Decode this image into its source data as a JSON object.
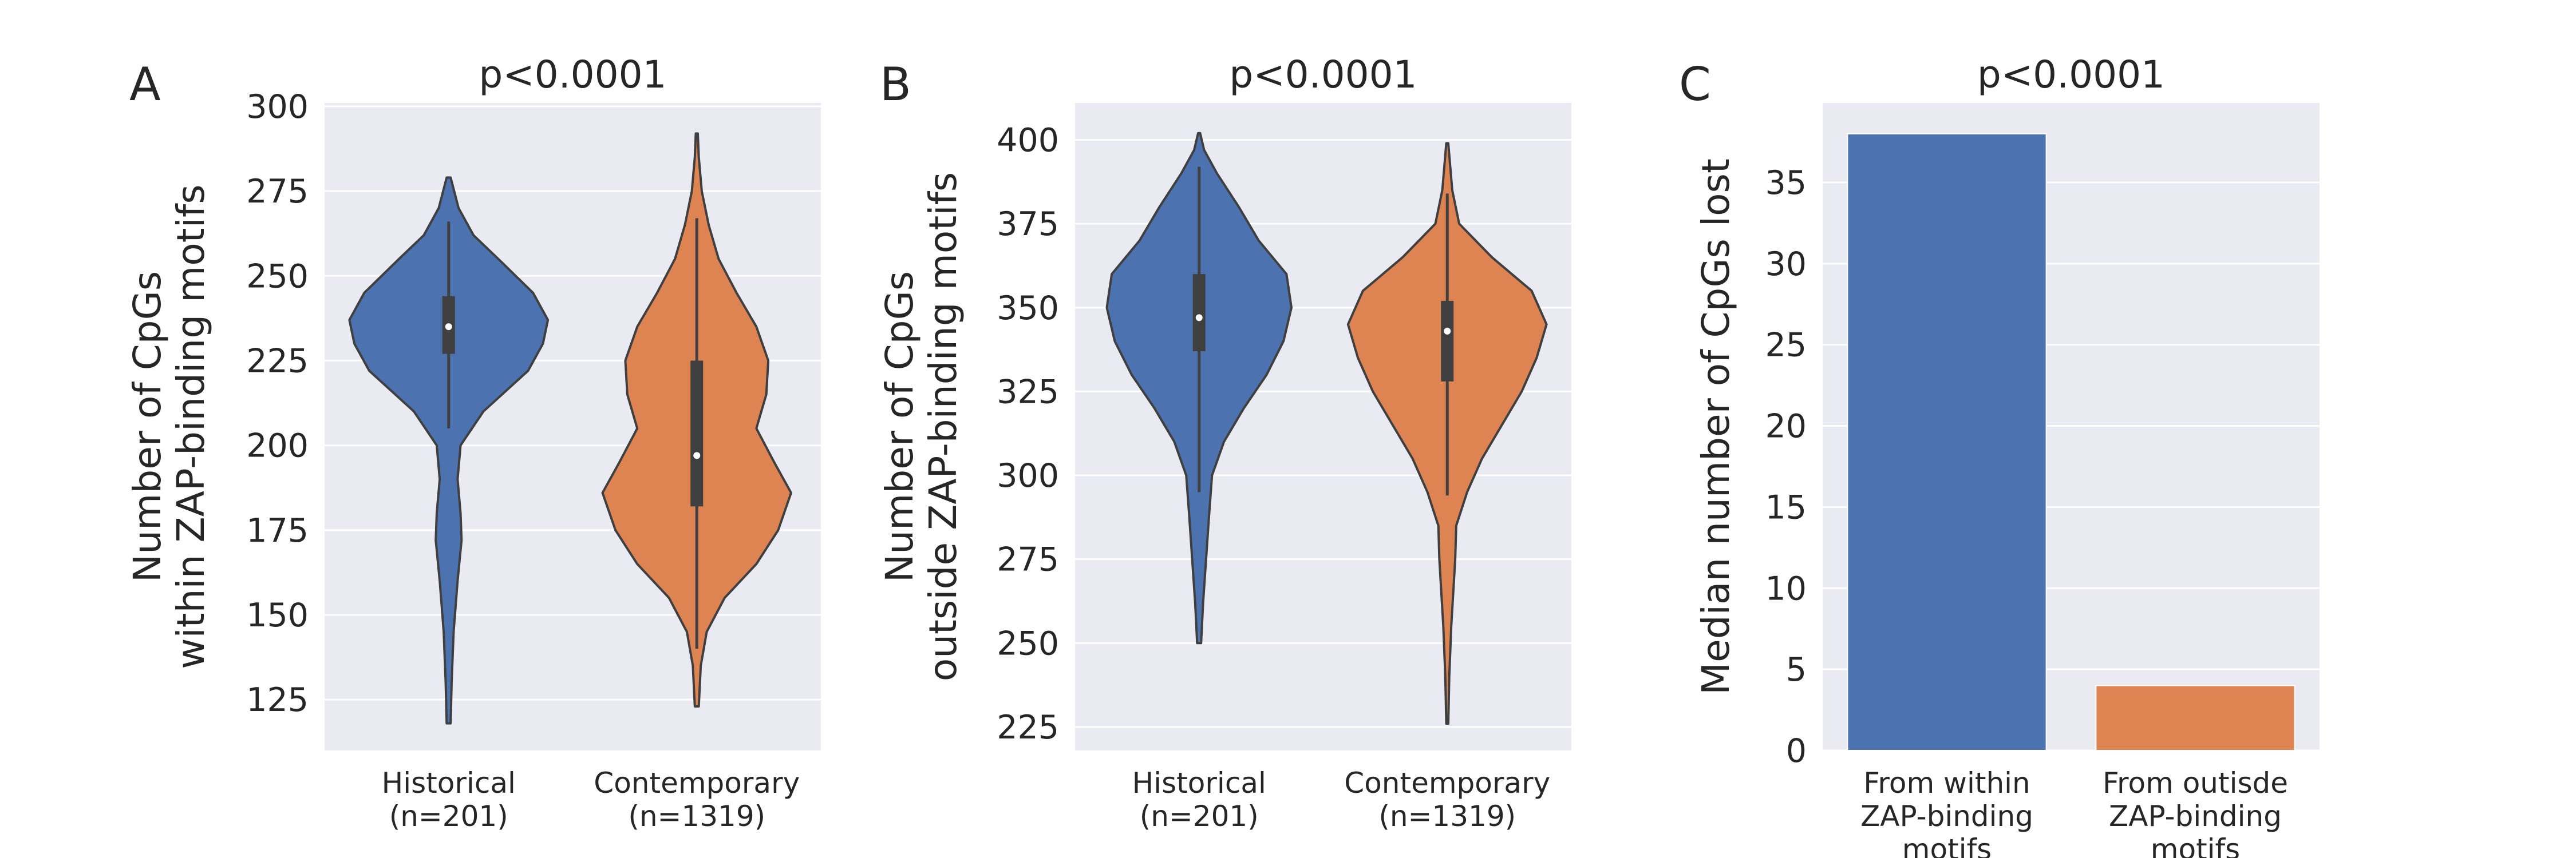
{
  "chart_data": [
    {
      "panel_letter": "A",
      "type": "violin",
      "title": "p<0.0001",
      "ylabel_lines": [
        "Number of CpGs",
        "within ZAP-binding motifs"
      ],
      "yticks": [
        125,
        150,
        175,
        200,
        225,
        250,
        275,
        300
      ],
      "ylim": [
        110,
        301
      ],
      "grid": true,
      "series": [
        {
          "label_lines": [
            "Historical",
            "(n=201)"
          ],
          "color": "#4c72b0",
          "range": [
            118,
            279
          ],
          "q1": 227,
          "median": 235,
          "q3": 244,
          "whisker": [
            205,
            266
          ],
          "density": [
            [
              118,
              0.02
            ],
            [
              130,
              0.03
            ],
            [
              145,
              0.05
            ],
            [
              160,
              0.09
            ],
            [
              172,
              0.13
            ],
            [
              180,
              0.12
            ],
            [
              190,
              0.09
            ],
            [
              200,
              0.12
            ],
            [
              210,
              0.35
            ],
            [
              222,
              0.8
            ],
            [
              230,
              0.95
            ],
            [
              237,
              1.0
            ],
            [
              245,
              0.85
            ],
            [
              255,
              0.5
            ],
            [
              262,
              0.25
            ],
            [
              270,
              0.1
            ],
            [
              279,
              0.02
            ]
          ]
        },
        {
          "label_lines": [
            "Contemporary",
            "(n=1319)"
          ],
          "color": "#dd8452",
          "range": [
            123,
            292
          ],
          "q1": 182,
          "median": 197,
          "q3": 225,
          "whisker": [
            140,
            267
          ],
          "density": [
            [
              123,
              0.02
            ],
            [
              135,
              0.04
            ],
            [
              145,
              0.1
            ],
            [
              155,
              0.28
            ],
            [
              165,
              0.6
            ],
            [
              175,
              0.82
            ],
            [
              186,
              0.95
            ],
            [
              195,
              0.78
            ],
            [
              205,
              0.6
            ],
            [
              215,
              0.7
            ],
            [
              225,
              0.72
            ],
            [
              235,
              0.6
            ],
            [
              245,
              0.4
            ],
            [
              255,
              0.22
            ],
            [
              265,
              0.12
            ],
            [
              275,
              0.05
            ],
            [
              285,
              0.02
            ],
            [
              292,
              0.01
            ]
          ]
        }
      ]
    },
    {
      "panel_letter": "B",
      "type": "violin",
      "title": "p<0.0001",
      "ylabel_lines": [
        "Number of CpGs",
        "outside ZAP-binding motifs"
      ],
      "yticks": [
        225,
        250,
        275,
        300,
        325,
        350,
        375,
        400
      ],
      "ylim": [
        218,
        411
      ],
      "grid": true,
      "series": [
        {
          "label_lines": [
            "Historical",
            "(n=201)"
          ],
          "color": "#4c72b0",
          "range": [
            250,
            402
          ],
          "q1": 337,
          "median": 347,
          "q3": 360,
          "whisker": [
            295,
            392
          ],
          "density": [
            [
              250,
              0.02
            ],
            [
              262,
              0.04
            ],
            [
              275,
              0.07
            ],
            [
              288,
              0.1
            ],
            [
              300,
              0.13
            ],
            [
              310,
              0.25
            ],
            [
              320,
              0.45
            ],
            [
              330,
              0.68
            ],
            [
              340,
              0.85
            ],
            [
              350,
              0.93
            ],
            [
              360,
              0.88
            ],
            [
              370,
              0.6
            ],
            [
              380,
              0.4
            ],
            [
              390,
              0.18
            ],
            [
              397,
              0.05
            ],
            [
              402,
              0.01
            ]
          ]
        },
        {
          "label_lines": [
            "Contemporary",
            "(n=1319)"
          ],
          "color": "#dd8452",
          "range": [
            226,
            399
          ],
          "q1": 328,
          "median": 343,
          "q3": 352,
          "whisker": [
            294,
            384
          ],
          "density": [
            [
              226,
              0.01
            ],
            [
              240,
              0.02
            ],
            [
              255,
              0.04
            ],
            [
              265,
              0.06
            ],
            [
              275,
              0.08
            ],
            [
              285,
              0.09
            ],
            [
              295,
              0.2
            ],
            [
              305,
              0.35
            ],
            [
              315,
              0.55
            ],
            [
              325,
              0.75
            ],
            [
              335,
              0.9
            ],
            [
              345,
              1.0
            ],
            [
              355,
              0.85
            ],
            [
              365,
              0.45
            ],
            [
              375,
              0.12
            ],
            [
              385,
              0.05
            ],
            [
              392,
              0.03
            ],
            [
              399,
              0.01
            ]
          ]
        }
      ]
    },
    {
      "panel_letter": "C",
      "type": "bar",
      "title": "p<0.0001",
      "ylabel_lines": [
        "Median number of CpGs lost"
      ],
      "yticks": [
        0,
        5,
        10,
        15,
        20,
        25,
        30,
        35
      ],
      "ylim": [
        0,
        39.9
      ],
      "grid": true,
      "categories": [
        [
          "From within",
          "ZAP-binding",
          "motifs"
        ],
        [
          "From outisde",
          "ZAP-binding",
          "motifs"
        ]
      ],
      "values": [
        38,
        4
      ],
      "colors": [
        "#4c72b0",
        "#dd8452"
      ]
    }
  ]
}
